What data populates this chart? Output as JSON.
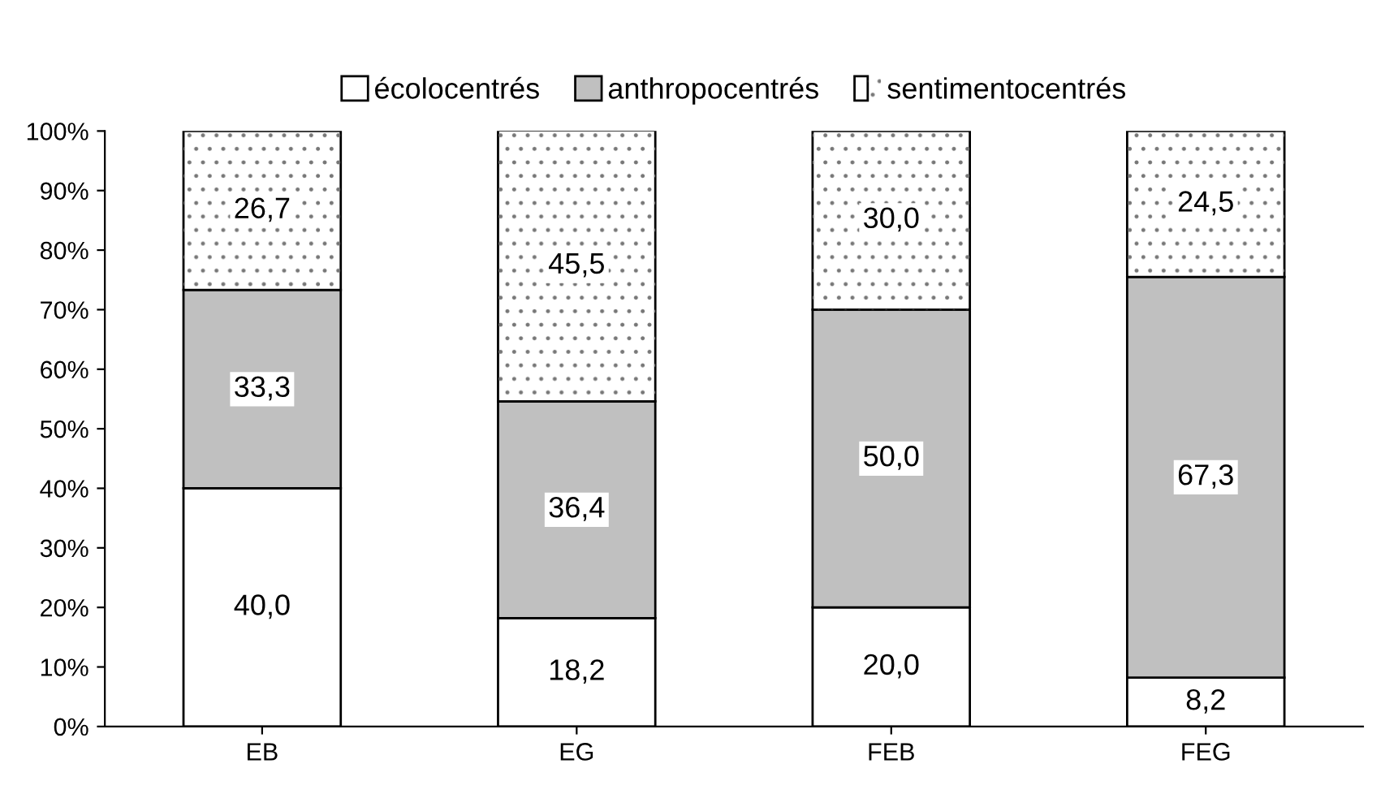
{
  "chart_data": {
    "type": "bar",
    "stacked": true,
    "categories": [
      "EB",
      "EG",
      "FEB",
      "FEG"
    ],
    "series": [
      {
        "name": "écolocentrés",
        "color": "#ffffff",
        "values": [
          40.0,
          18.2,
          20.0,
          8.2
        ],
        "value_labels": [
          "40,0",
          "18,2",
          "20,0",
          "8,2"
        ]
      },
      {
        "name": "anthropocentrés",
        "color": "#c0c0c0",
        "values": [
          33.3,
          36.4,
          50.0,
          67.3
        ],
        "value_labels": [
          "33,3",
          "36,4",
          "50,0",
          "67,3"
        ]
      },
      {
        "name": "sentimentocentrés",
        "color": "#ffffff",
        "values": [
          26.7,
          45.5,
          30.0,
          24.5
        ],
        "value_labels": [
          "26,7",
          "45,5",
          "30,0",
          "24,5"
        ]
      }
    ],
    "ylim": [
      0,
      100
    ],
    "yticks": [
      {
        "value": 0,
        "label": "0%"
      },
      {
        "value": 10,
        "label": "10%"
      },
      {
        "value": 20,
        "label": "20%"
      },
      {
        "value": 30,
        "label": "30%"
      },
      {
        "value": 40,
        "label": "40%"
      },
      {
        "value": 50,
        "label": "50%"
      },
      {
        "value": 60,
        "label": "60%"
      },
      {
        "value": 70,
        "label": "70%"
      },
      {
        "value": 80,
        "label": "80%"
      },
      {
        "value": 90,
        "label": "90%"
      },
      {
        "value": 100,
        "label": "100%"
      }
    ],
    "grid": false,
    "legend": "top"
  }
}
